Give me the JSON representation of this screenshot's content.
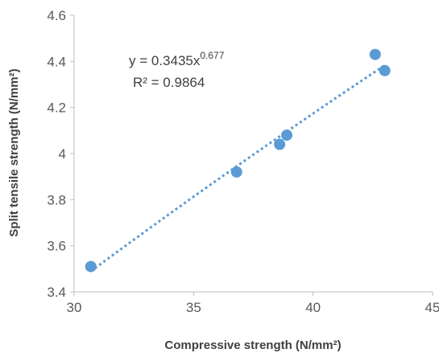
{
  "chart_data": {
    "type": "scatter",
    "xlabel": "Compressive strength (N/mm²)",
    "ylabel": "Split tensile  strength (N/mm²)",
    "xlim": [
      30,
      45
    ],
    "ylim": [
      3.4,
      4.6
    ],
    "x_ticks": [
      "30",
      "35",
      "40",
      "45"
    ],
    "y_ticks": [
      "3.4",
      "3.6",
      "3.8",
      "4",
      "4.2",
      "4.4",
      "4.6"
    ],
    "grid": false,
    "legend": "none",
    "series": [
      {
        "x": [
          30.7,
          36.8,
          38.6,
          38.9,
          42.6,
          43.0
        ],
        "y": [
          3.51,
          3.92,
          4.04,
          4.08,
          4.43,
          4.36
        ],
        "color": "#5b9bd5"
      }
    ],
    "trendline": {
      "type": "power",
      "coefficient": 0.3435,
      "exponent": 0.677,
      "style": "dotted",
      "color": "#5b9bd5",
      "equation_prefix": "y = 0.3435x",
      "equation_exponent": "0.677",
      "r_squared_label": "R² = 0.9864"
    }
  }
}
